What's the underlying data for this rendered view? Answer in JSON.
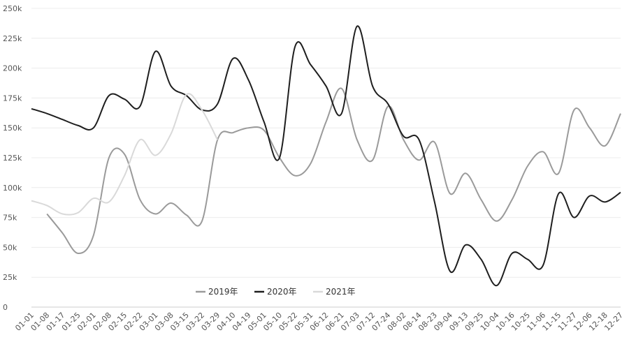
{
  "chart_data": {
    "type": "line",
    "categories": [
      "01-01",
      "01-08",
      "01-17",
      "01-25",
      "02-01",
      "02-08",
      "02-15",
      "02-22",
      "03-01",
      "03-08",
      "03-15",
      "03-22",
      "03-29",
      "04-10",
      "04-19",
      "05-01",
      "05-10",
      "05-22",
      "05-31",
      "06-12",
      "06-21",
      "07-03",
      "07-12",
      "07-24",
      "08-02",
      "08-14",
      "08-23",
      "09-04",
      "09-13",
      "09-25",
      "10-04",
      "10-16",
      "10-25",
      "11-06",
      "11-15",
      "11-27",
      "12-06",
      "12-18",
      "12-27"
    ],
    "series": [
      {
        "name": "2019年",
        "color": "#9a9a9a",
        "values": [
          null,
          78000,
          62000,
          45000,
          60000,
          125000,
          128000,
          90000,
          78000,
          87000,
          77000,
          72000,
          140000,
          146000,
          150000,
          148000,
          125000,
          110000,
          120000,
          155000,
          183000,
          140000,
          123000,
          168000,
          140000,
          123000,
          138000,
          95000,
          112000,
          90000,
          72000,
          90000,
          118000,
          130000,
          112000,
          165000,
          150000,
          135000,
          162000
        ]
      },
      {
        "name": "2020年",
        "color": "#1e1e1e",
        "values": [
          166000,
          162000,
          157000,
          152000,
          150000,
          177000,
          174000,
          168000,
          214000,
          185000,
          177000,
          165000,
          170000,
          208000,
          190000,
          155000,
          125000,
          218000,
          203000,
          185000,
          162000,
          235000,
          185000,
          170000,
          143000,
          140000,
          88000,
          30000,
          52000,
          40000,
          18000,
          45000,
          40000,
          35000,
          95000,
          75000,
          93000,
          88000,
          96000
        ]
      },
      {
        "name": "2021年",
        "color": "#d9d9d9",
        "values": [
          89000,
          85000,
          78000,
          79000,
          91000,
          88000,
          110000,
          140000,
          127000,
          145000,
          178000,
          165000,
          140000,
          null,
          null,
          null,
          null,
          null,
          null,
          null,
          null,
          null,
          null,
          null,
          null,
          null,
          null,
          null,
          null,
          null,
          null,
          null,
          null,
          null,
          null,
          null,
          null,
          null,
          null
        ]
      }
    ],
    "ylim": [
      0,
      250000
    ],
    "yticks": [
      {
        "value": 0,
        "label": "0"
      },
      {
        "value": 25000,
        "label": "25k"
      },
      {
        "value": 50000,
        "label": "50k"
      },
      {
        "value": 75000,
        "label": "75k"
      },
      {
        "value": 100000,
        "label": "100k"
      },
      {
        "value": 125000,
        "label": "125k"
      },
      {
        "value": 150000,
        "label": "150k"
      },
      {
        "value": 175000,
        "label": "175k"
      },
      {
        "value": 200000,
        "label": "200k"
      },
      {
        "value": 225000,
        "label": "225k"
      },
      {
        "value": 250000,
        "label": "250k"
      }
    ],
    "grid": true,
    "legend": "bottom"
  }
}
